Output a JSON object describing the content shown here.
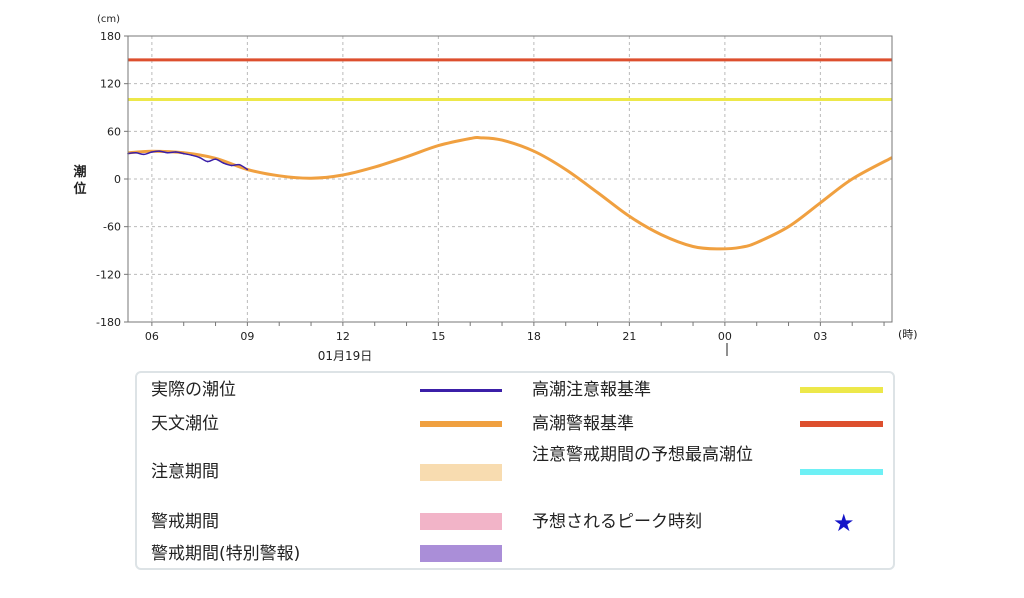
{
  "chart_data": {
    "type": "line",
    "unit_label": "(cm)",
    "ylabel": "潮位",
    "x_unit_label": "(時)",
    "date_label": "01月19日",
    "ylim": [
      -180,
      180
    ],
    "yticks": [
      180,
      120,
      60,
      0,
      -60,
      -120,
      -180
    ],
    "xlim_hours": [
      5.25,
      29.25
    ],
    "xticks": [
      {
        "hour": 6,
        "label": "06"
      },
      {
        "hour": 9,
        "label": "09"
      },
      {
        "hour": 12,
        "label": "12"
      },
      {
        "hour": 15,
        "label": "15"
      },
      {
        "hour": 18,
        "label": "18"
      },
      {
        "hour": 21,
        "label": "21"
      },
      {
        "hour": 24,
        "label": "00"
      },
      {
        "hour": 27,
        "label": "03"
      }
    ],
    "grid": true,
    "series": [
      {
        "name": "実際の潮位",
        "color": "#3b1fa8",
        "x": [
          5.25,
          5.5,
          5.75,
          6.0,
          6.25,
          6.5,
          6.75,
          7.0,
          7.25,
          7.5,
          7.75,
          8.0,
          8.25,
          8.5,
          8.75,
          9.0
        ],
        "y": [
          32,
          33,
          31,
          34,
          35,
          33,
          34,
          32,
          30,
          27,
          22,
          25,
          20,
          17,
          18,
          12
        ]
      },
      {
        "name": "天文潮位",
        "color": "#f0a040",
        "x": [
          5.25,
          6,
          7,
          8,
          9,
          10,
          11,
          12,
          13,
          14,
          15,
          16,
          16.3,
          17,
          18,
          19,
          20,
          21,
          22,
          23,
          23.8,
          24.5,
          25,
          26,
          27,
          28,
          29.25
        ],
        "y": [
          33,
          35,
          33,
          26,
          12,
          4,
          1,
          5,
          15,
          28,
          42,
          51,
          52,
          49,
          35,
          12,
          -17,
          -47,
          -70,
          -85,
          -88,
          -86,
          -80,
          -60,
          -30,
          0,
          27
        ]
      },
      {
        "name": "高潮注意報基準",
        "color": "#ede84a",
        "constant": 100
      },
      {
        "name": "高潮警報基準",
        "color": "#dd4f2e",
        "constant": 150
      }
    ]
  },
  "legend": {
    "actual": {
      "label": "実際の潮位",
      "color": "#3b1fa8"
    },
    "astro": {
      "label": "天文潮位",
      "color": "#f0a040"
    },
    "caution_period": {
      "label": "注意期間",
      "color": "#f8dcb0"
    },
    "warning_period": {
      "label": "警戒期間",
      "color": "#f2b4c8"
    },
    "special_period": {
      "label": "警戒期間(特別警報)",
      "color": "#aa8ed8"
    },
    "caution_std": {
      "label": "高潮注意報基準",
      "color": "#ede84a"
    },
    "warning_std": {
      "label": "高潮警報基準",
      "color": "#dd4f2e"
    },
    "predicted_max": {
      "label": "注意警戒期間の予想最高潮位",
      "color": "#6ef0f5"
    },
    "peak_time": {
      "label": "予想されるピーク時刻",
      "symbol": "★",
      "color": "#1414c8"
    }
  }
}
